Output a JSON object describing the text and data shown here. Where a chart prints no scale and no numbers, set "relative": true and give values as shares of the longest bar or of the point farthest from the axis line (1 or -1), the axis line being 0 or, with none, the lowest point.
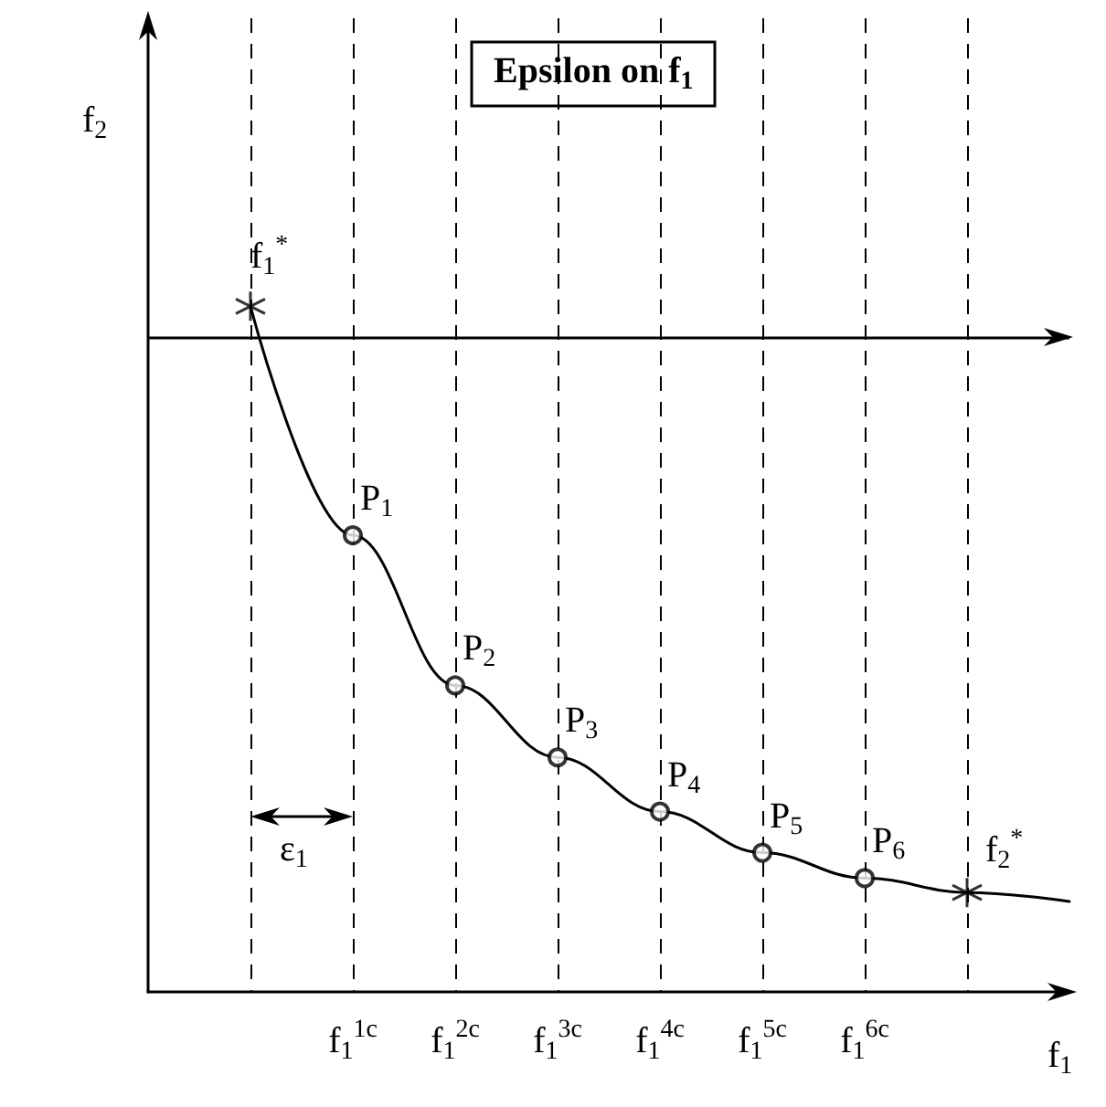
{
  "chart_data": {
    "type": "line",
    "title": "Epsilon on f$_{1}$",
    "xlabel": "f$_{1}$",
    "ylabel": "f$_{2}$",
    "relative": true,
    "grid": "x",
    "categories": [
      null,
      null,
      "f$_{1}$$^{1c}$",
      "f$_{1}$$^{2c}$",
      "f$_{1}$$^{3c}$",
      "f$_{1}$$^{4c}$",
      "f$_{1}$$^{5c}$",
      "f$_{1}$$^{6c}$",
      null,
      null
    ],
    "series": [
      {
        "color": "#000000",
        "marker": "none",
        "values": [
          null,
          1,
          0.666,
          0.447,
          0.342,
          0.263,
          0.203,
          0.166,
          0.145,
          0.132
        ]
      },
      {
        "type": "scatter",
        "color": "#000000",
        "marker": "circle",
        "values": [
          null,
          null,
          0.666,
          0.447,
          0.342,
          0.263,
          0.203,
          0.166,
          null,
          null
        ]
      },
      {
        "type": "scatter",
        "color": "#000000",
        "marker": "cross",
        "values": [
          null,
          1,
          null,
          null,
          null,
          null,
          null,
          null,
          0.145,
          null
        ]
      }
    ],
    "ref_lines": [
      {
        "axis": "y",
        "value": 0.955,
        "line_style": "solid"
      }
    ],
    "annotations": [
      "f$_{1}$$^{*}$",
      "f$_{2}$$^{*}$",
      "ε$_{1}$",
      {
        "text": "P$_{1}$",
        "x": "f$_{1}$$^{1c}$",
        "y": 0.666
      },
      {
        "text": "P$_{2}$",
        "x": "f$_{1}$$^{2c}$",
        "y": 0.447
      },
      {
        "text": "P$_{3}$",
        "x": "f$_{1}$$^{3c}$",
        "y": 0.342
      },
      {
        "text": "P$_{4}$",
        "x": "f$_{1}$$^{4c}$",
        "y": 0.263
      },
      {
        "text": "P$_{5}$",
        "x": "f$_{1}$$^{5c}$",
        "y": 0.203
      },
      {
        "text": "P$_{6}$",
        "x": "f$_{1}$$^{6c}$",
        "y": 0.166
      }
    ]
  }
}
